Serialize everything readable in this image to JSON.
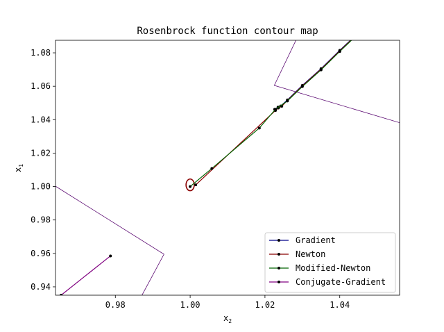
{
  "chart_data": {
    "type": "line",
    "title": "Rosenbrock function contour map",
    "xlabel": "x",
    "xlabel_sub": "2",
    "ylabel": "x",
    "ylabel_sub": "1",
    "xlim": [
      0.964,
      1.056
    ],
    "ylim": [
      0.935,
      1.0875
    ],
    "xticks": [
      0.98,
      1.0,
      1.02,
      1.04
    ],
    "xtick_labels": [
      "0.98",
      "1.00",
      "1.02",
      "1.04"
    ],
    "yticks": [
      0.94,
      0.96,
      0.98,
      1.0,
      1.02,
      1.04,
      1.06,
      1.08
    ],
    "ytick_labels": [
      "0.94",
      "0.96",
      "0.98",
      "1.00",
      "1.02",
      "1.04",
      "1.06",
      "1.08"
    ],
    "grid": false,
    "legend_position": "bottom-right",
    "contours": [
      {
        "color": "#5b0a72",
        "points": [
          [
            0.964,
            1.0002
          ],
          [
            0.993,
            0.9595
          ],
          [
            0.987,
            0.9345
          ]
        ]
      },
      {
        "color": "#5b0a72",
        "points": [
          [
            1.0285,
            1.0885
          ],
          [
            1.0225,
            1.0605
          ],
          [
            1.056,
            1.0382
          ]
        ]
      },
      {
        "color": "#8b0000",
        "type": "ellipse",
        "center": [
          1.0,
          1.001
        ],
        "rx": 0.0011,
        "ry": 0.0035
      }
    ],
    "series": [
      {
        "name": "Gradient",
        "color": "#00008b",
        "x": [
          1.0226,
          1.0235,
          1.0242,
          1.026,
          1.03,
          1.035,
          1.04,
          1.045
        ],
        "y": [
          1.0462,
          1.0475,
          1.0482,
          1.0518,
          1.0605,
          1.0705,
          1.0815,
          1.092
        ]
      },
      {
        "name": "Newton",
        "color": "#8b0000",
        "x": [
          1.0015,
          1.0228,
          1.0236,
          1.0245,
          1.026,
          1.03,
          1.035,
          1.04,
          1.045
        ],
        "y": [
          1.001,
          1.0455,
          1.047,
          1.048,
          1.0515,
          1.0602,
          1.0702,
          1.0812,
          1.0918
        ]
      },
      {
        "name": "Modified-Newton",
        "color": "#006400",
        "x": [
          1.0,
          1.0058,
          1.0185,
          1.0228,
          1.026,
          1.03,
          1.035,
          1.04,
          1.045
        ],
        "y": [
          1.0,
          1.0108,
          1.035,
          1.0462,
          1.0512,
          1.0598,
          1.0698,
          1.0808,
          1.0915
        ]
      },
      {
        "name": "Conjugate-Gradient",
        "color": "#800080",
        "x": [
          0.9787,
          0.9655
        ],
        "y": [
          0.9585,
          0.935
        ]
      }
    ]
  }
}
